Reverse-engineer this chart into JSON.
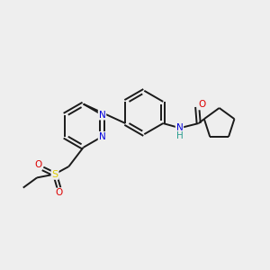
{
  "background_color": "#eeeeee",
  "bond_color": "#1a1a1a",
  "atom_colors": {
    "N": "#0000dd",
    "O": "#dd0000",
    "S": "#ddcc00",
    "NH_color": "#2a9d8f",
    "C": "#1a1a1a"
  },
  "figsize": [
    3.0,
    3.0
  ],
  "dpi": 100,
  "lw": 1.4,
  "fontsize": 7.5
}
